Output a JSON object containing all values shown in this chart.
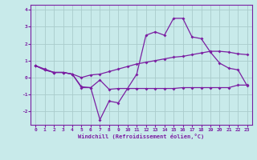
{
  "background_color": "#c8eaea",
  "grid_color": "#aacccc",
  "line_color": "#7b1fa2",
  "x_values": [
    0,
    1,
    2,
    3,
    4,
    5,
    6,
    7,
    8,
    9,
    10,
    11,
    12,
    13,
    14,
    15,
    16,
    17,
    18,
    19,
    20,
    21,
    22,
    23
  ],
  "series1": [
    0.7,
    0.5,
    0.3,
    0.3,
    0.2,
    -0.6,
    -0.6,
    -2.5,
    -1.4,
    -1.5,
    -0.65,
    0.2,
    2.5,
    2.7,
    2.5,
    3.5,
    3.5,
    2.4,
    2.3,
    1.5,
    0.85,
    0.55,
    0.45,
    -0.5
  ],
  "series2": [
    0.7,
    0.45,
    0.3,
    0.3,
    0.2,
    -0.55,
    -0.6,
    -0.15,
    -0.7,
    -0.65,
    -0.65,
    -0.65,
    -0.65,
    -0.65,
    -0.65,
    -0.65,
    -0.6,
    -0.6,
    -0.6,
    -0.6,
    -0.6,
    -0.6,
    -0.45,
    -0.45
  ],
  "series3": [
    0.7,
    0.45,
    0.3,
    0.3,
    0.2,
    0.0,
    0.15,
    0.2,
    0.35,
    0.5,
    0.65,
    0.8,
    0.9,
    1.0,
    1.1,
    1.2,
    1.25,
    1.35,
    1.45,
    1.55,
    1.55,
    1.5,
    1.4,
    1.35
  ],
  "xlabel": "Windchill (Refroidissement éolien,°C)",
  "xlim": [
    -0.5,
    23.5
  ],
  "ylim": [
    -2.8,
    4.3
  ],
  "yticks": [
    -2,
    -1,
    0,
    1,
    2,
    3,
    4
  ],
  "xticks": [
    0,
    1,
    2,
    3,
    4,
    5,
    6,
    7,
    8,
    9,
    10,
    11,
    12,
    13,
    14,
    15,
    16,
    17,
    18,
    19,
    20,
    21,
    22,
    23
  ]
}
